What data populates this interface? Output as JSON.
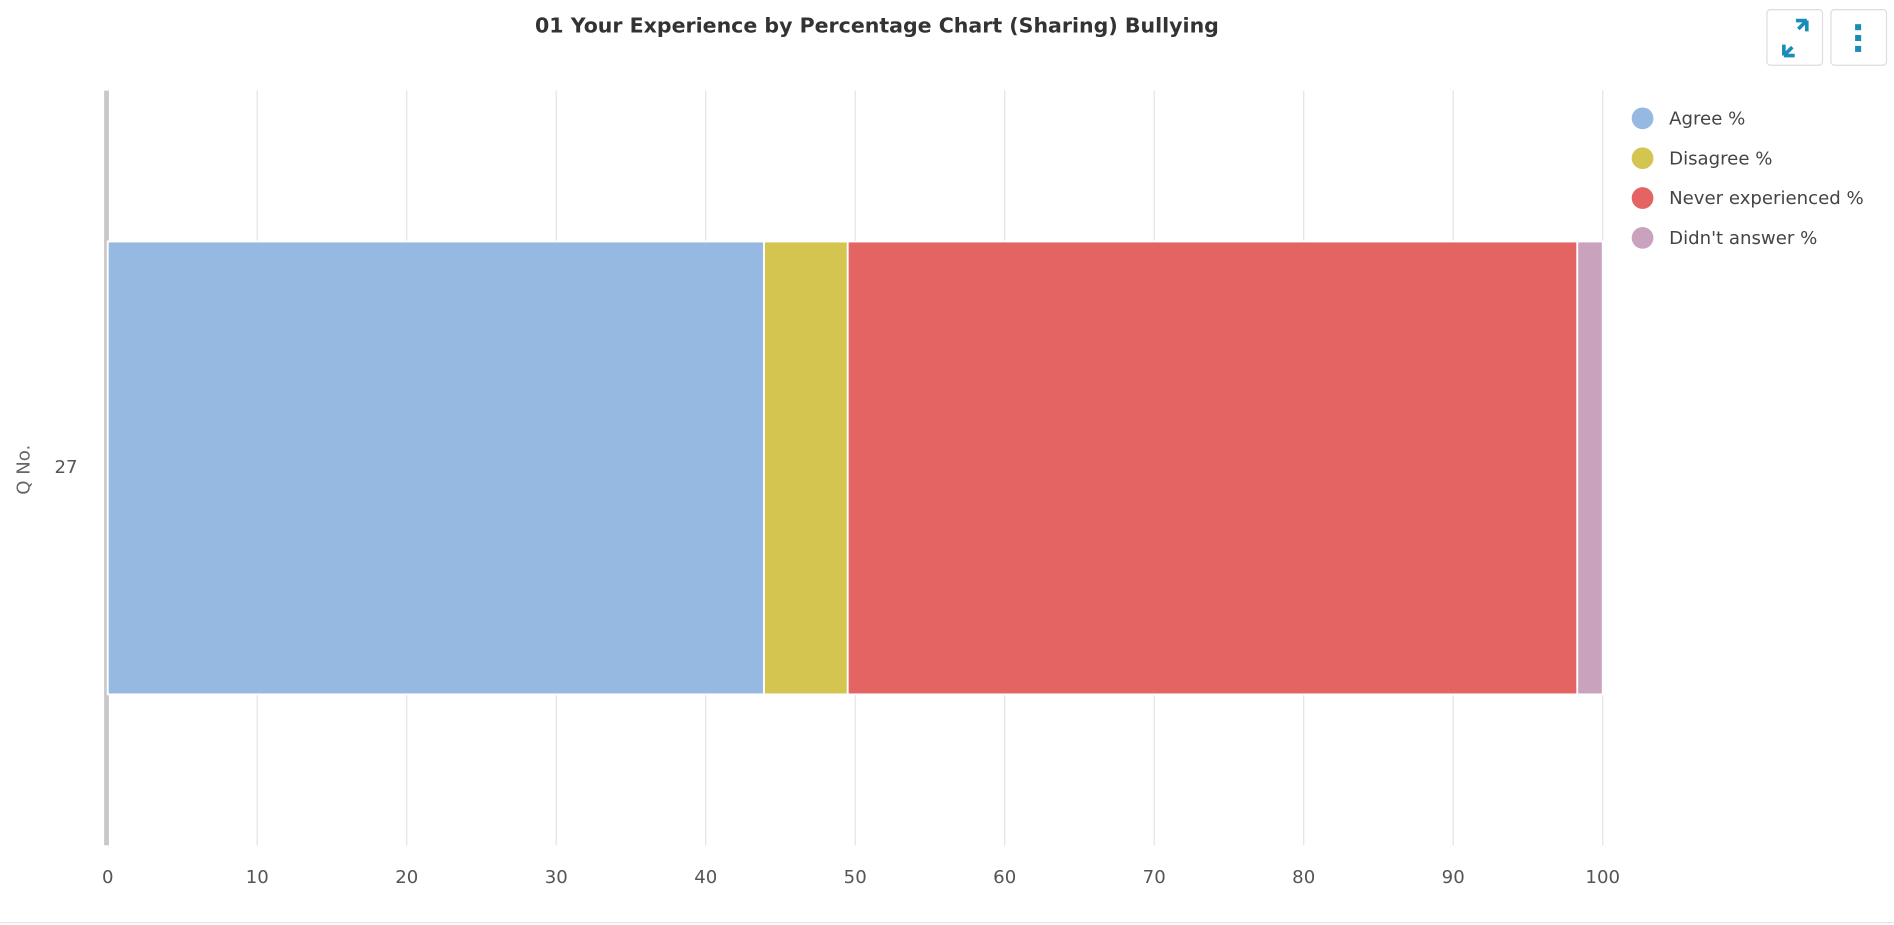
{
  "chart_data": {
    "type": "bar",
    "orientation": "horizontal",
    "stacked": true,
    "title": "01 Your Experience by Percentage Chart (Sharing) Bullying",
    "y_label": "Q No.",
    "categories": [
      "27"
    ],
    "series": [
      {
        "name": "Agree %",
        "color": "#95b9e1",
        "values": [
          43.9
        ]
      },
      {
        "name": "Disagree %",
        "color": "#d4c551",
        "values": [
          5.6
        ]
      },
      {
        "name": "Never experienced %",
        "color": "#e46464",
        "values": [
          48.8
        ]
      },
      {
        "name": "Didn't answer %",
        "color": "#c9a3be",
        "values": [
          1.7
        ]
      }
    ],
    "xlim": [
      0,
      100
    ],
    "xticks": [
      0,
      10,
      20,
      30,
      40,
      50,
      60,
      70,
      80,
      90,
      100
    ],
    "grid": true,
    "legend": "top-right"
  }
}
